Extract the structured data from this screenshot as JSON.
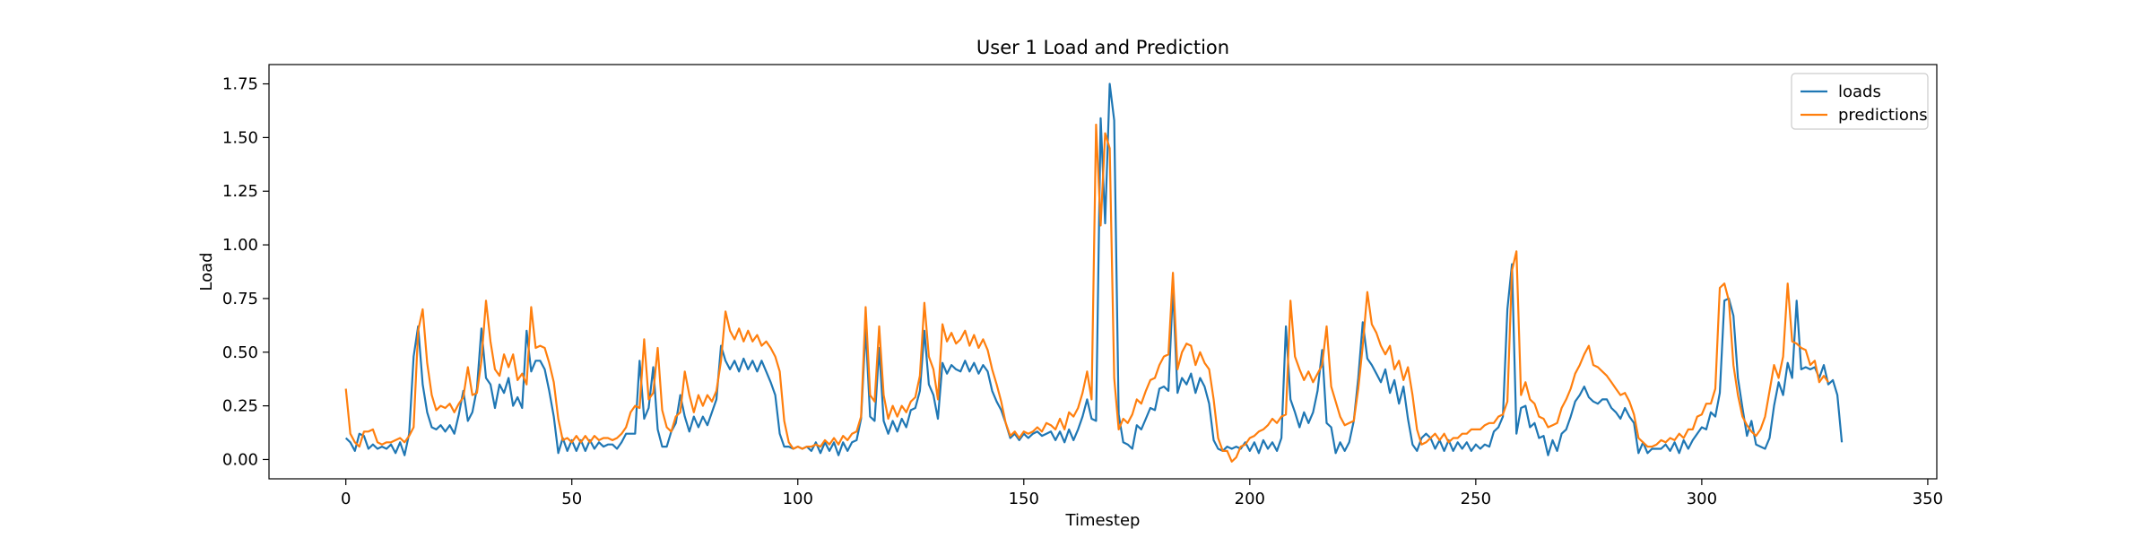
{
  "chart_data": {
    "type": "line",
    "title": "User 1 Load and Prediction",
    "xlabel": "Timestep",
    "ylabel": "Load",
    "xlim": [
      -17,
      352
    ],
    "ylim": [
      -0.09,
      1.84
    ],
    "xticks": [
      0,
      50,
      100,
      150,
      200,
      250,
      300,
      350
    ],
    "yticks": [
      0.0,
      0.25,
      0.5,
      0.75,
      1.0,
      1.25,
      1.5,
      1.75
    ],
    "xtick_labels": [
      "0",
      "50",
      "100",
      "150",
      "200",
      "250",
      "300",
      "350"
    ],
    "ytick_labels": [
      "0.00",
      "0.25",
      "0.50",
      "0.75",
      "1.00",
      "1.25",
      "1.50",
      "1.75"
    ],
    "legend_position": "top-right",
    "grid": false,
    "series": [
      {
        "name": "loads",
        "color": "#1f77b4",
        "x_start": 0,
        "values": [
          0.1,
          0.08,
          0.04,
          0.12,
          0.11,
          0.05,
          0.07,
          0.05,
          0.06,
          0.05,
          0.07,
          0.03,
          0.08,
          0.02,
          0.12,
          0.48,
          0.62,
          0.35,
          0.22,
          0.15,
          0.14,
          0.16,
          0.13,
          0.16,
          0.12,
          0.21,
          0.32,
          0.18,
          0.22,
          0.33,
          0.61,
          0.38,
          0.35,
          0.24,
          0.35,
          0.31,
          0.38,
          0.25,
          0.29,
          0.24,
          0.6,
          0.41,
          0.46,
          0.46,
          0.42,
          0.32,
          0.2,
          0.03,
          0.1,
          0.04,
          0.09,
          0.04,
          0.09,
          0.04,
          0.09,
          0.05,
          0.08,
          0.06,
          0.07,
          0.07,
          0.05,
          0.08,
          0.12,
          0.12,
          0.12,
          0.46,
          0.19,
          0.24,
          0.43,
          0.14,
          0.06,
          0.06,
          0.13,
          0.17,
          0.3,
          0.2,
          0.13,
          0.2,
          0.15,
          0.2,
          0.16,
          0.22,
          0.28,
          0.53,
          0.46,
          0.42,
          0.46,
          0.41,
          0.47,
          0.42,
          0.46,
          0.41,
          0.46,
          0.41,
          0.36,
          0.3,
          0.12,
          0.06,
          0.06,
          0.05,
          0.06,
          0.05,
          0.06,
          0.04,
          0.08,
          0.03,
          0.08,
          0.04,
          0.08,
          0.02,
          0.08,
          0.04,
          0.08,
          0.09,
          0.19,
          0.61,
          0.2,
          0.18,
          0.52,
          0.18,
          0.12,
          0.18,
          0.13,
          0.19,
          0.15,
          0.23,
          0.24,
          0.32,
          0.6,
          0.35,
          0.3,
          0.19,
          0.45,
          0.4,
          0.44,
          0.42,
          0.41,
          0.46,
          0.41,
          0.45,
          0.4,
          0.44,
          0.41,
          0.32,
          0.27,
          0.23,
          0.17,
          0.1,
          0.12,
          0.09,
          0.12,
          0.1,
          0.12,
          0.13,
          0.11,
          0.12,
          0.13,
          0.09,
          0.13,
          0.08,
          0.14,
          0.09,
          0.14,
          0.2,
          0.28,
          0.19,
          0.18,
          1.59,
          1.1,
          1.75,
          1.58,
          0.21,
          0.08,
          0.07,
          0.05,
          0.16,
          0.14,
          0.19,
          0.24,
          0.23,
          0.33,
          0.34,
          0.32,
          0.8,
          0.31,
          0.38,
          0.35,
          0.4,
          0.31,
          0.38,
          0.34,
          0.26,
          0.09,
          0.05,
          0.04,
          0.06,
          0.05,
          0.06,
          0.05,
          0.08,
          0.04,
          0.08,
          0.03,
          0.09,
          0.05,
          0.08,
          0.04,
          0.1,
          0.62,
          0.28,
          0.22,
          0.15,
          0.22,
          0.17,
          0.22,
          0.32,
          0.51,
          0.17,
          0.15,
          0.03,
          0.08,
          0.04,
          0.08,
          0.18,
          0.38,
          0.64,
          0.47,
          0.44,
          0.4,
          0.36,
          0.42,
          0.31,
          0.37,
          0.26,
          0.34,
          0.19,
          0.07,
          0.04,
          0.1,
          0.12,
          0.1,
          0.05,
          0.09,
          0.04,
          0.09,
          0.04,
          0.08,
          0.05,
          0.08,
          0.04,
          0.07,
          0.05,
          0.07,
          0.06,
          0.13,
          0.15,
          0.2,
          0.7,
          0.91,
          0.12,
          0.24,
          0.25,
          0.15,
          0.17,
          0.1,
          0.11,
          0.02,
          0.09,
          0.04,
          0.12,
          0.14,
          0.2,
          0.27,
          0.3,
          0.34,
          0.29,
          0.27,
          0.26,
          0.28,
          0.28,
          0.24,
          0.22,
          0.19,
          0.24,
          0.2,
          0.17,
          0.03,
          0.08,
          0.03,
          0.05,
          0.05,
          0.05,
          0.07,
          0.04,
          0.08,
          0.03,
          0.09,
          0.05,
          0.09,
          0.12,
          0.15,
          0.14,
          0.22,
          0.2,
          0.31,
          0.74,
          0.75,
          0.67,
          0.38,
          0.24,
          0.11,
          0.18,
          0.07,
          0.06,
          0.05,
          0.1,
          0.25,
          0.36,
          0.3,
          0.45,
          0.38,
          0.74,
          0.42,
          0.43,
          0.42,
          0.43,
          0.38,
          0.44,
          0.35,
          0.37,
          0.3,
          0.08
        ]
      },
      {
        "name": "predictions",
        "color": "#ff7f0e",
        "x_start": 0,
        "values": [
          0.33,
          0.12,
          0.08,
          0.06,
          0.13,
          0.13,
          0.14,
          0.08,
          0.07,
          0.08,
          0.08,
          0.09,
          0.1,
          0.08,
          0.11,
          0.15,
          0.6,
          0.7,
          0.45,
          0.3,
          0.23,
          0.25,
          0.24,
          0.26,
          0.22,
          0.26,
          0.29,
          0.43,
          0.3,
          0.31,
          0.46,
          0.74,
          0.55,
          0.42,
          0.39,
          0.49,
          0.43,
          0.49,
          0.37,
          0.4,
          0.35,
          0.71,
          0.52,
          0.53,
          0.52,
          0.45,
          0.36,
          0.19,
          0.09,
          0.1,
          0.08,
          0.11,
          0.08,
          0.11,
          0.08,
          0.11,
          0.09,
          0.1,
          0.1,
          0.09,
          0.1,
          0.12,
          0.15,
          0.22,
          0.25,
          0.24,
          0.56,
          0.28,
          0.31,
          0.52,
          0.23,
          0.15,
          0.13,
          0.2,
          0.22,
          0.41,
          0.3,
          0.22,
          0.3,
          0.25,
          0.3,
          0.27,
          0.32,
          0.46,
          0.69,
          0.6,
          0.56,
          0.61,
          0.55,
          0.6,
          0.55,
          0.58,
          0.53,
          0.55,
          0.52,
          0.48,
          0.41,
          0.18,
          0.08,
          0.05,
          0.06,
          0.05,
          0.06,
          0.06,
          0.07,
          0.06,
          0.09,
          0.07,
          0.1,
          0.07,
          0.11,
          0.09,
          0.12,
          0.13,
          0.2,
          0.71,
          0.3,
          0.27,
          0.62,
          0.3,
          0.19,
          0.25,
          0.2,
          0.25,
          0.22,
          0.27,
          0.29,
          0.39,
          0.73,
          0.48,
          0.42,
          0.28,
          0.63,
          0.55,
          0.59,
          0.54,
          0.56,
          0.6,
          0.53,
          0.58,
          0.52,
          0.56,
          0.51,
          0.42,
          0.35,
          0.27,
          0.17,
          0.11,
          0.13,
          0.1,
          0.13,
          0.12,
          0.13,
          0.15,
          0.13,
          0.17,
          0.16,
          0.14,
          0.19,
          0.14,
          0.22,
          0.2,
          0.24,
          0.31,
          0.41,
          0.28,
          1.56,
          1.09,
          1.52,
          1.45,
          0.38,
          0.14,
          0.19,
          0.17,
          0.21,
          0.28,
          0.26,
          0.32,
          0.37,
          0.38,
          0.44,
          0.48,
          0.49,
          0.87,
          0.42,
          0.5,
          0.54,
          0.53,
          0.44,
          0.5,
          0.45,
          0.42,
          0.28,
          0.1,
          0.04,
          0.04,
          -0.01,
          0.01,
          0.06,
          0.07,
          0.1,
          0.11,
          0.13,
          0.14,
          0.16,
          0.19,
          0.17,
          0.2,
          0.21,
          0.74,
          0.48,
          0.42,
          0.37,
          0.41,
          0.36,
          0.4,
          0.44,
          0.62,
          0.34,
          0.27,
          0.2,
          0.16,
          0.17,
          0.18,
          0.33,
          0.53,
          0.78,
          0.63,
          0.59,
          0.53,
          0.49,
          0.53,
          0.42,
          0.46,
          0.37,
          0.43,
          0.3,
          0.14,
          0.07,
          0.08,
          0.1,
          0.12,
          0.09,
          0.12,
          0.08,
          0.1,
          0.1,
          0.12,
          0.12,
          0.14,
          0.14,
          0.14,
          0.16,
          0.17,
          0.17,
          0.2,
          0.21,
          0.27,
          0.88,
          0.97,
          0.3,
          0.36,
          0.28,
          0.26,
          0.2,
          0.19,
          0.15,
          0.16,
          0.17,
          0.24,
          0.28,
          0.33,
          0.4,
          0.44,
          0.49,
          0.53,
          0.44,
          0.43,
          0.41,
          0.39,
          0.36,
          0.33,
          0.3,
          0.31,
          0.27,
          0.21,
          0.1,
          0.08,
          0.06,
          0.06,
          0.07,
          0.09,
          0.08,
          0.1,
          0.09,
          0.12,
          0.1,
          0.14,
          0.14,
          0.2,
          0.21,
          0.26,
          0.26,
          0.33,
          0.8,
          0.82,
          0.74,
          0.44,
          0.3,
          0.2,
          0.16,
          0.13,
          0.11,
          0.14,
          0.2,
          0.32,
          0.44,
          0.38,
          0.48,
          0.82,
          0.55,
          0.54,
          0.52,
          0.51,
          0.44,
          0.46,
          0.36,
          0.39,
          0.36
        ]
      }
    ]
  }
}
